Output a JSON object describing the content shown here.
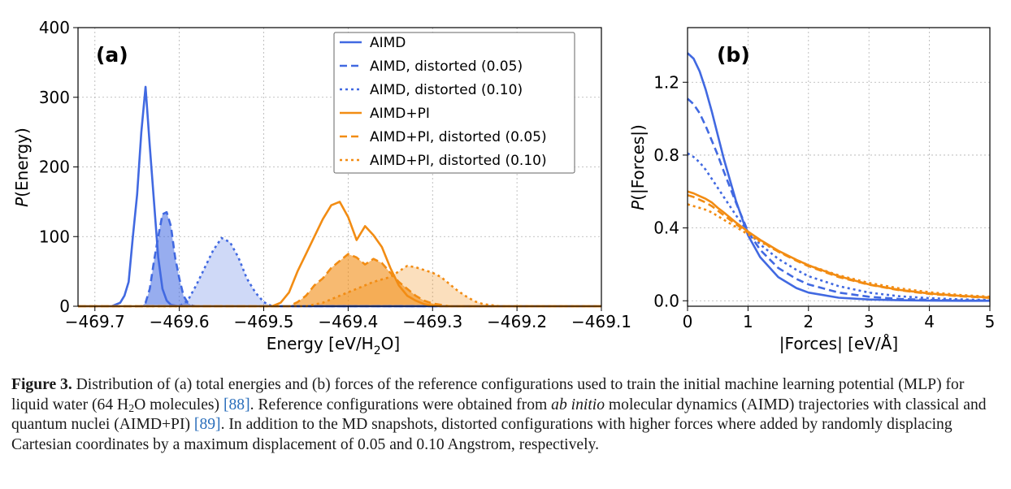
{
  "chart_data": [
    {
      "type": "area",
      "panel_label": "(a)",
      "xlabel_parts": [
        "Energy [eV/H",
        "2",
        "O]"
      ],
      "ylabel_parts": [
        "P",
        "(Energy)"
      ],
      "xlim": [
        -469.72,
        -469.1
      ],
      "ylim": [
        0,
        400
      ],
      "xticks": [
        -469.7,
        -469.6,
        -469.5,
        -469.4,
        -469.3,
        -469.2,
        -469.1
      ],
      "xtick_labels": [
        "−469.7",
        "−469.6",
        "−469.5",
        "−469.4",
        "−469.3",
        "−469.2",
        "−469.1"
      ],
      "yticks": [
        0,
        100,
        200,
        300,
        400
      ],
      "ytick_labels": [
        "0",
        "100",
        "200",
        "300",
        "400"
      ],
      "grid": true,
      "legend_position": "top-right",
      "series": [
        {
          "name": "AIMD",
          "color": "#4169e1",
          "dash": "solid",
          "filled": false,
          "x": [
            -469.72,
            -469.68,
            -469.67,
            -469.665,
            -469.66,
            -469.655,
            -469.65,
            -469.645,
            -469.64,
            -469.635,
            -469.63,
            -469.625,
            -469.62,
            -469.615,
            -469.61,
            -469.6,
            -469.58,
            -469.1
          ],
          "y": [
            0,
            0,
            5,
            15,
            35,
            100,
            160,
            250,
            315,
            230,
            150,
            70,
            25,
            8,
            2,
            0,
            0,
            0
          ]
        },
        {
          "name": "AIMD, distorted (0.05)",
          "color": "#4169e1",
          "dash": "dashed",
          "filled": true,
          "fill_opacity": 0.55,
          "x": [
            -469.72,
            -469.645,
            -469.64,
            -469.635,
            -469.63,
            -469.625,
            -469.62,
            -469.615,
            -469.61,
            -469.605,
            -469.6,
            -469.595,
            -469.59,
            -469.585,
            -469.58,
            -469.1
          ],
          "y": [
            0,
            0,
            5,
            25,
            65,
            100,
            132,
            135,
            115,
            70,
            40,
            15,
            5,
            1,
            0,
            0
          ]
        },
        {
          "name": "AIMD, distorted (0.10)",
          "color": "#4169e1",
          "dash": "dotted",
          "filled": true,
          "fill_opacity": 0.25,
          "x": [
            -469.72,
            -469.6,
            -469.59,
            -469.58,
            -469.57,
            -469.56,
            -469.55,
            -469.54,
            -469.53,
            -469.52,
            -469.51,
            -469.5,
            -469.49,
            -469.1
          ],
          "y": [
            0,
            0,
            8,
            30,
            55,
            80,
            98,
            92,
            70,
            40,
            20,
            6,
            0,
            0
          ]
        },
        {
          "name": "AIMD+PI",
          "color": "#f28c13",
          "dash": "solid",
          "filled": false,
          "x": [
            -469.72,
            -469.49,
            -469.48,
            -469.47,
            -469.46,
            -469.45,
            -469.44,
            -469.43,
            -469.42,
            -469.41,
            -469.4,
            -469.39,
            -469.38,
            -469.37,
            -469.36,
            -469.35,
            -469.34,
            -469.33,
            -469.32,
            -469.31,
            -469.3,
            -469.29,
            -469.1
          ],
          "y": [
            0,
            0,
            5,
            20,
            50,
            75,
            100,
            125,
            145,
            150,
            128,
            95,
            115,
            102,
            85,
            55,
            30,
            15,
            8,
            3,
            1,
            0,
            0
          ]
        },
        {
          "name": "AIMD+PI, distorted (0.05)",
          "color": "#f28c13",
          "dash": "dashed",
          "filled": true,
          "fill_opacity": 0.6,
          "x": [
            -469.72,
            -469.47,
            -469.46,
            -469.45,
            -469.44,
            -469.43,
            -469.42,
            -469.41,
            -469.4,
            -469.39,
            -469.38,
            -469.37,
            -469.36,
            -469.35,
            -469.34,
            -469.33,
            -469.32,
            -469.31,
            -469.3,
            -469.29,
            -469.28,
            -469.1
          ],
          "y": [
            0,
            0,
            6,
            15,
            30,
            40,
            55,
            65,
            75,
            70,
            60,
            68,
            62,
            48,
            35,
            25,
            15,
            8,
            4,
            2,
            0,
            0
          ]
        },
        {
          "name": "AIMD+PI, distorted (0.10)",
          "color": "#f28c13",
          "dash": "dotted",
          "filled": true,
          "fill_opacity": 0.28,
          "x": [
            -469.72,
            -469.45,
            -469.43,
            -469.41,
            -469.39,
            -469.37,
            -469.35,
            -469.34,
            -469.33,
            -469.32,
            -469.31,
            -469.3,
            -469.29,
            -469.28,
            -469.27,
            -469.26,
            -469.25,
            -469.24,
            -469.22,
            -469.1
          ],
          "y": [
            0,
            0,
            5,
            15,
            25,
            35,
            42,
            50,
            58,
            56,
            52,
            48,
            42,
            32,
            22,
            14,
            7,
            3,
            0,
            0
          ]
        }
      ]
    },
    {
      "type": "line",
      "panel_label": "(b)",
      "xlabel": "|Forces| [eV/Å]",
      "ylabel_parts": [
        "P",
        "(|Forces|)"
      ],
      "xlim": [
        0,
        5
      ],
      "ylim": [
        -0.03,
        1.5
      ],
      "xticks": [
        0,
        1,
        2,
        3,
        4,
        5
      ],
      "xtick_labels": [
        "0",
        "1",
        "2",
        "3",
        "4",
        "5"
      ],
      "yticks": [
        0,
        0.4,
        0.8,
        1.2
      ],
      "ytick_labels": [
        "0.0",
        "0.4",
        "0.8",
        "1.2"
      ],
      "grid": true,
      "series": [
        {
          "color": "#4169e1",
          "dash": "solid",
          "x": [
            0,
            0.1,
            0.2,
            0.3,
            0.4,
            0.5,
            0.6,
            0.8,
            1.0,
            1.2,
            1.5,
            1.8,
            2.0,
            2.5,
            3.0,
            3.5,
            4.0,
            4.5,
            5.0
          ],
          "y": [
            1.36,
            1.33,
            1.26,
            1.16,
            1.04,
            0.91,
            0.78,
            0.55,
            0.36,
            0.24,
            0.13,
            0.07,
            0.045,
            0.017,
            0.007,
            0.003,
            0.001,
            0.0,
            0.0
          ]
        },
        {
          "color": "#4169e1",
          "dash": "dashed",
          "x": [
            0,
            0.1,
            0.2,
            0.3,
            0.4,
            0.5,
            0.6,
            0.8,
            1.0,
            1.2,
            1.5,
            1.8,
            2.0,
            2.5,
            3.0,
            3.5,
            4.0,
            4.5,
            5.0
          ],
          "y": [
            1.11,
            1.08,
            1.03,
            0.96,
            0.88,
            0.8,
            0.71,
            0.54,
            0.38,
            0.28,
            0.18,
            0.12,
            0.09,
            0.045,
            0.022,
            0.01,
            0.005,
            0.002,
            0.001
          ]
        },
        {
          "color": "#4169e1",
          "dash": "dotted",
          "x": [
            0,
            0.1,
            0.2,
            0.3,
            0.4,
            0.5,
            0.6,
            0.8,
            1.0,
            1.2,
            1.5,
            1.8,
            2.0,
            2.5,
            3.0,
            3.5,
            4.0,
            4.5,
            5.0
          ],
          "y": [
            0.81,
            0.79,
            0.76,
            0.72,
            0.67,
            0.62,
            0.57,
            0.47,
            0.38,
            0.31,
            0.23,
            0.17,
            0.135,
            0.08,
            0.045,
            0.025,
            0.014,
            0.008,
            0.004
          ]
        },
        {
          "color": "#f28c13",
          "dash": "solid",
          "x": [
            0,
            0.1,
            0.2,
            0.3,
            0.4,
            0.5,
            0.6,
            0.8,
            1.0,
            1.2,
            1.5,
            1.8,
            2.0,
            2.5,
            3.0,
            3.5,
            4.0,
            4.5,
            5.0
          ],
          "y": [
            0.6,
            0.59,
            0.575,
            0.56,
            0.54,
            0.51,
            0.485,
            0.43,
            0.38,
            0.335,
            0.275,
            0.225,
            0.195,
            0.135,
            0.09,
            0.06,
            0.04,
            0.027,
            0.018
          ]
        },
        {
          "color": "#f28c13",
          "dash": "dashed",
          "x": [
            0,
            0.1,
            0.2,
            0.3,
            0.4,
            0.5,
            0.6,
            0.8,
            1.0,
            1.2,
            1.5,
            1.8,
            2.0,
            2.5,
            3.0,
            3.5,
            4.0,
            4.5,
            5.0
          ],
          "y": [
            0.58,
            0.57,
            0.555,
            0.54,
            0.52,
            0.495,
            0.47,
            0.42,
            0.375,
            0.33,
            0.27,
            0.22,
            0.19,
            0.13,
            0.088,
            0.058,
            0.038,
            0.025,
            0.016
          ]
        },
        {
          "color": "#f28c13",
          "dash": "dotted",
          "x": [
            0,
            0.1,
            0.2,
            0.3,
            0.4,
            0.5,
            0.6,
            0.8,
            1.0,
            1.2,
            1.5,
            1.8,
            2.0,
            2.5,
            3.0,
            3.5,
            4.0,
            4.5,
            5.0
          ],
          "y": [
            0.53,
            0.52,
            0.51,
            0.5,
            0.485,
            0.465,
            0.445,
            0.405,
            0.365,
            0.325,
            0.27,
            0.225,
            0.195,
            0.14,
            0.098,
            0.068,
            0.047,
            0.032,
            0.022
          ]
        }
      ]
    }
  ],
  "caption": {
    "label": "Figure 3.",
    "p1": " Distribution of (a) total energies and (b) forces of the reference configurations used to train the initial machine learning potential (MLP) for liquid water (64 H",
    "sub1": "2",
    "p2": "O molecules) ",
    "ref1": "[88]",
    "p3": ". Reference configurations were obtained from ",
    "italic": "ab initio",
    "p4": " molecular dynamics (AIMD) trajectories with classical and quantum nuclei (AIMD+PI) ",
    "ref2": "[89]",
    "p5": ". In addition to the MD snapshots, distorted configurations with higher forces where added by randomly displacing Cartesian coordinates by a maximum displacement of 0.05 and 0.10 Angstrom, respectively."
  }
}
